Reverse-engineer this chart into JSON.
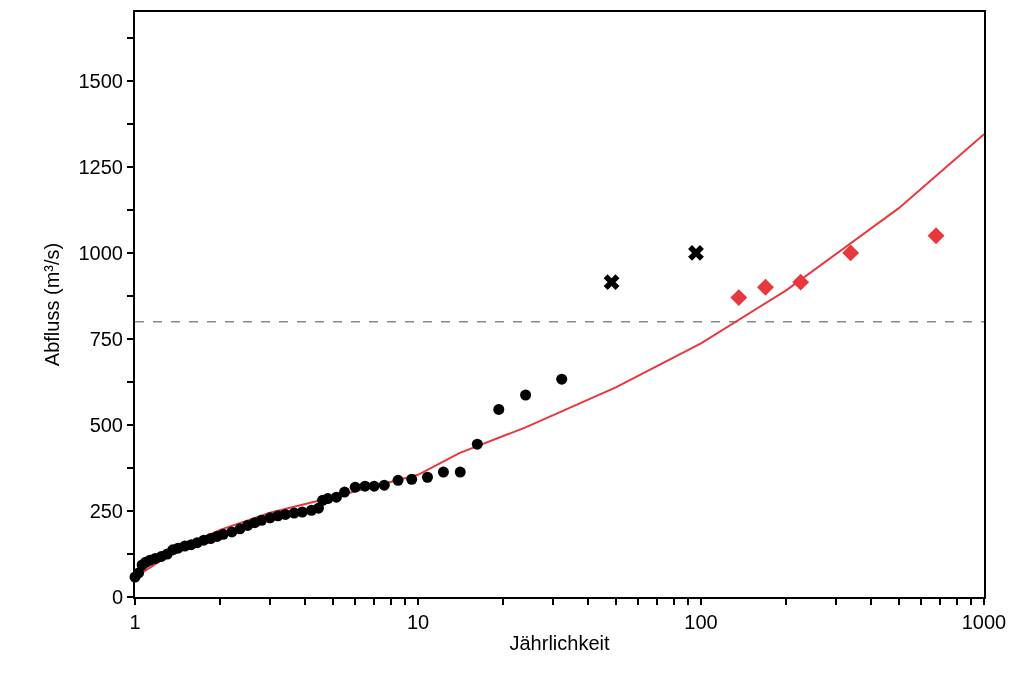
{
  "chart_data": {
    "type": "scatter",
    "xlabel": "Jährlichkeit",
    "ylabel": "Abfluss (m³/s)",
    "log": "x",
    "grid": false,
    "xlim": [
      1,
      1000
    ],
    "xticks": [
      1,
      {
        "value": 2,
        "label": null
      },
      {
        "value": 3,
        "label": null
      },
      {
        "value": 4,
        "label": null
      },
      {
        "value": 5,
        "label": null
      },
      {
        "value": 6,
        "label": null
      },
      {
        "value": 7,
        "label": null
      },
      {
        "value": 8,
        "label": null
      },
      {
        "value": 9,
        "label": null
      },
      10,
      {
        "value": 20,
        "label": null
      },
      {
        "value": 30,
        "label": null
      },
      {
        "value": 40,
        "label": null
      },
      {
        "value": 50,
        "label": null
      },
      {
        "value": 60,
        "label": null
      },
      {
        "value": 70,
        "label": null
      },
      {
        "value": 80,
        "label": null
      },
      {
        "value": 90,
        "label": null
      },
      100,
      {
        "value": 200,
        "label": null
      },
      {
        "value": 300,
        "label": null
      },
      {
        "value": 400,
        "label": null
      },
      {
        "value": 500,
        "label": null
      },
      {
        "value": 600,
        "label": null
      },
      {
        "value": 700,
        "label": null
      },
      {
        "value": 800,
        "label": null
      },
      {
        "value": 900,
        "label": null
      },
      1000
    ],
    "ylim": [
      0,
      1700
    ],
    "yticks": [
      0,
      {
        "value": 125,
        "label": null
      },
      250,
      {
        "value": 375,
        "label": null
      },
      500,
      {
        "value": 625,
        "label": null
      },
      750,
      {
        "value": 875,
        "label": null
      },
      1000,
      {
        "value": 1125,
        "label": null
      },
      1250,
      {
        "value": 1375,
        "label": null
      },
      1500,
      {
        "value": 1625,
        "label": null
      }
    ],
    "ref_lines": [
      {
        "axis": "y",
        "value": 800,
        "color": "#888888",
        "line_style": "dashed"
      }
    ],
    "series": [
      {
        "type": "line",
        "color": "#e8383d",
        "marker": "none",
        "x": [
          1.01,
          1.5,
          2,
          3,
          5,
          10,
          14,
          24,
          50,
          100,
          200,
          500,
          1000
        ],
        "values": [
          60,
          150,
          195,
          245,
          290,
          355,
          418,
          493,
          609,
          737,
          891,
          1130,
          1345
        ]
      },
      {
        "color": "#000000",
        "marker": "circle",
        "x": [
          1.0,
          1.03,
          1.06,
          1.09,
          1.13,
          1.18,
          1.24,
          1.3,
          1.36,
          1.42,
          1.5,
          1.58,
          1.66,
          1.75,
          1.85,
          1.95,
          2.05,
          2.2,
          2.35,
          2.5,
          2.65,
          2.8,
          3.0,
          3.2,
          3.4,
          3.65,
          3.9,
          4.2,
          4.45,
          4.6,
          4.8,
          5.15,
          5.5,
          6.0,
          6.5,
          7.0,
          7.6,
          8.5,
          9.5,
          10.8,
          12.3,
          14.1,
          16.2,
          19.3,
          24.0,
          32.2
        ],
        "values": [
          58,
          70,
          93,
          101,
          107,
          112,
          118,
          125,
          137,
          142,
          148,
          152,
          158,
          165,
          170,
          176,
          182,
          189,
          198,
          208,
          216,
          223,
          230,
          236,
          240,
          244,
          247,
          252,
          258,
          281,
          286,
          290,
          305,
          319,
          322,
          322,
          325,
          339,
          342,
          348,
          363,
          363,
          444,
          545,
          587,
          633
        ]
      },
      {
        "color": "#000000",
        "marker": "cross",
        "x": [
          48.3,
          96
        ],
        "values": [
          915,
          1000
        ]
      },
      {
        "color": "#e8383d",
        "marker": "diamond",
        "x": [
          136,
          169,
          225,
          338,
          677
        ],
        "values": [
          870,
          900,
          915,
          1000,
          1050
        ]
      }
    ]
  }
}
